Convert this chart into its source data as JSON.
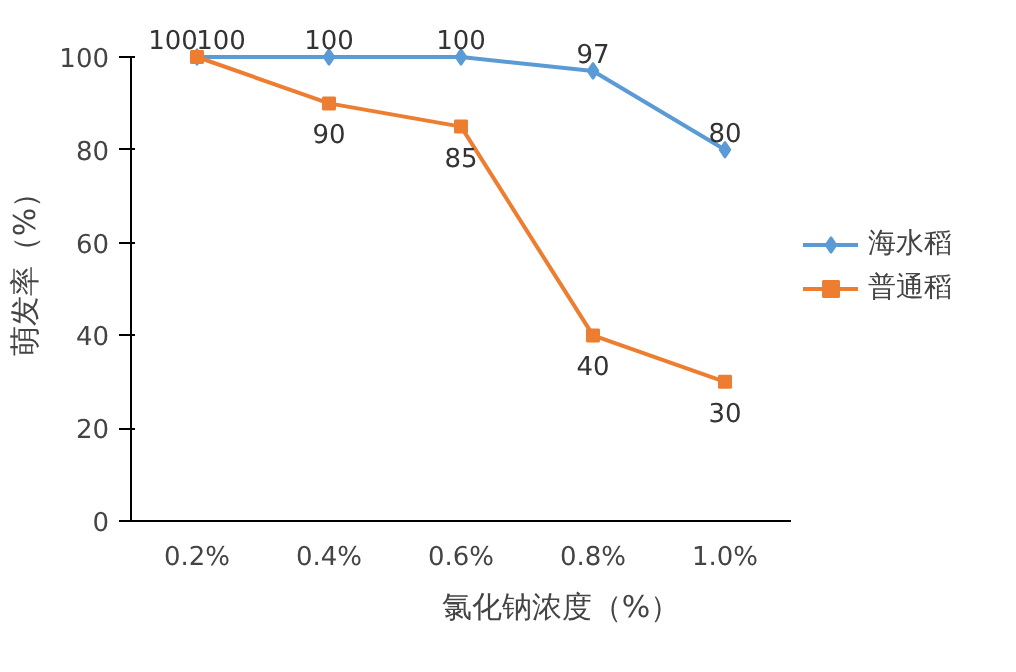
{
  "chart_data": {
    "type": "line",
    "xlabel": "氯化钠浓度（%）",
    "ylabel": "萌发率（%）",
    "categories": [
      "0.2%",
      "0.4%",
      "0.6%",
      "0.8%",
      "1.0%"
    ],
    "series": [
      {
        "name": "海水稻",
        "color": "#5b9bd5",
        "marker": "diamond",
        "values": [
          100,
          100,
          100,
          97,
          80
        ]
      },
      {
        "name": "普通稻",
        "color": "#ed7d31",
        "marker": "square",
        "values": [
          100,
          90,
          85,
          40,
          30
        ]
      }
    ],
    "ylim": [
      0,
      100
    ],
    "yticks": [
      0,
      20,
      40,
      60,
      80,
      100
    ],
    "grid": false,
    "legend": "right",
    "data_labels": true
  }
}
